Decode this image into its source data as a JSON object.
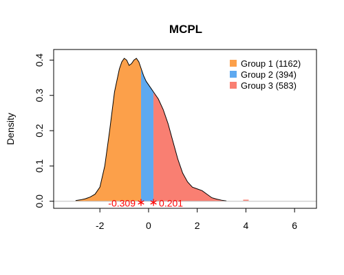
{
  "chart_data": {
    "type": "area",
    "title": "MCPL",
    "xlabel": "",
    "ylabel": "Density",
    "xlim": [
      -3.9,
      6.9
    ],
    "ylim": [
      -0.02,
      0.43
    ],
    "xticks": [
      -2,
      0,
      2,
      4,
      6
    ],
    "xtick_labels": [
      "-2",
      "0",
      "2",
      "4",
      "6"
    ],
    "yticks": [
      0.0,
      0.1,
      0.2,
      0.3,
      0.4
    ],
    "ytick_labels": [
      "0.0",
      "0.1",
      "0.2",
      "0.3",
      "0.4"
    ],
    "grid": false,
    "legend_position": "top-right",
    "density_curve": {
      "x": [
        -3.0,
        -2.8,
        -2.6,
        -2.4,
        -2.2,
        -2.0,
        -1.8,
        -1.6,
        -1.4,
        -1.2,
        -1.1,
        -1.0,
        -0.9,
        -0.8,
        -0.7,
        -0.6,
        -0.5,
        -0.4,
        -0.3,
        -0.2,
        -0.1,
        0.0,
        0.1,
        0.2,
        0.3,
        0.4,
        0.6,
        0.8,
        1.0,
        1.2,
        1.4,
        1.6,
        1.8,
        2.0,
        2.2,
        2.4,
        2.6,
        2.8,
        3.0,
        3.2
      ],
      "y": [
        0.002,
        0.004,
        0.007,
        0.012,
        0.02,
        0.04,
        0.1,
        0.2,
        0.31,
        0.375,
        0.395,
        0.405,
        0.4,
        0.385,
        0.39,
        0.4,
        0.405,
        0.395,
        0.375,
        0.355,
        0.34,
        0.33,
        0.32,
        0.31,
        0.3,
        0.29,
        0.26,
        0.22,
        0.17,
        0.12,
        0.08,
        0.055,
        0.04,
        0.035,
        0.03,
        0.02,
        0.01,
        0.006,
        0.003,
        0.001
      ]
    },
    "outliers": [
      {
        "x": 4.0,
        "y": 0.001
      }
    ],
    "series": [
      {
        "name": "Group 1 (1162)",
        "color": "#fca04a",
        "x_range": [
          -3.0,
          -0.309
        ]
      },
      {
        "name": "Group 2 (394)",
        "color": "#5ea9f0",
        "x_range": [
          -0.309,
          0.201
        ]
      },
      {
        "name": "Group 3 (583)",
        "color": "#f97f72",
        "x_range": [
          0.201,
          3.2
        ]
      }
    ],
    "cutpoints": [
      {
        "value": -0.309,
        "label": "-0.309"
      },
      {
        "value": 0.201,
        "label": "0.201"
      }
    ],
    "annotation_color": "#ff0000",
    "baseline_color": "#bebebe"
  }
}
